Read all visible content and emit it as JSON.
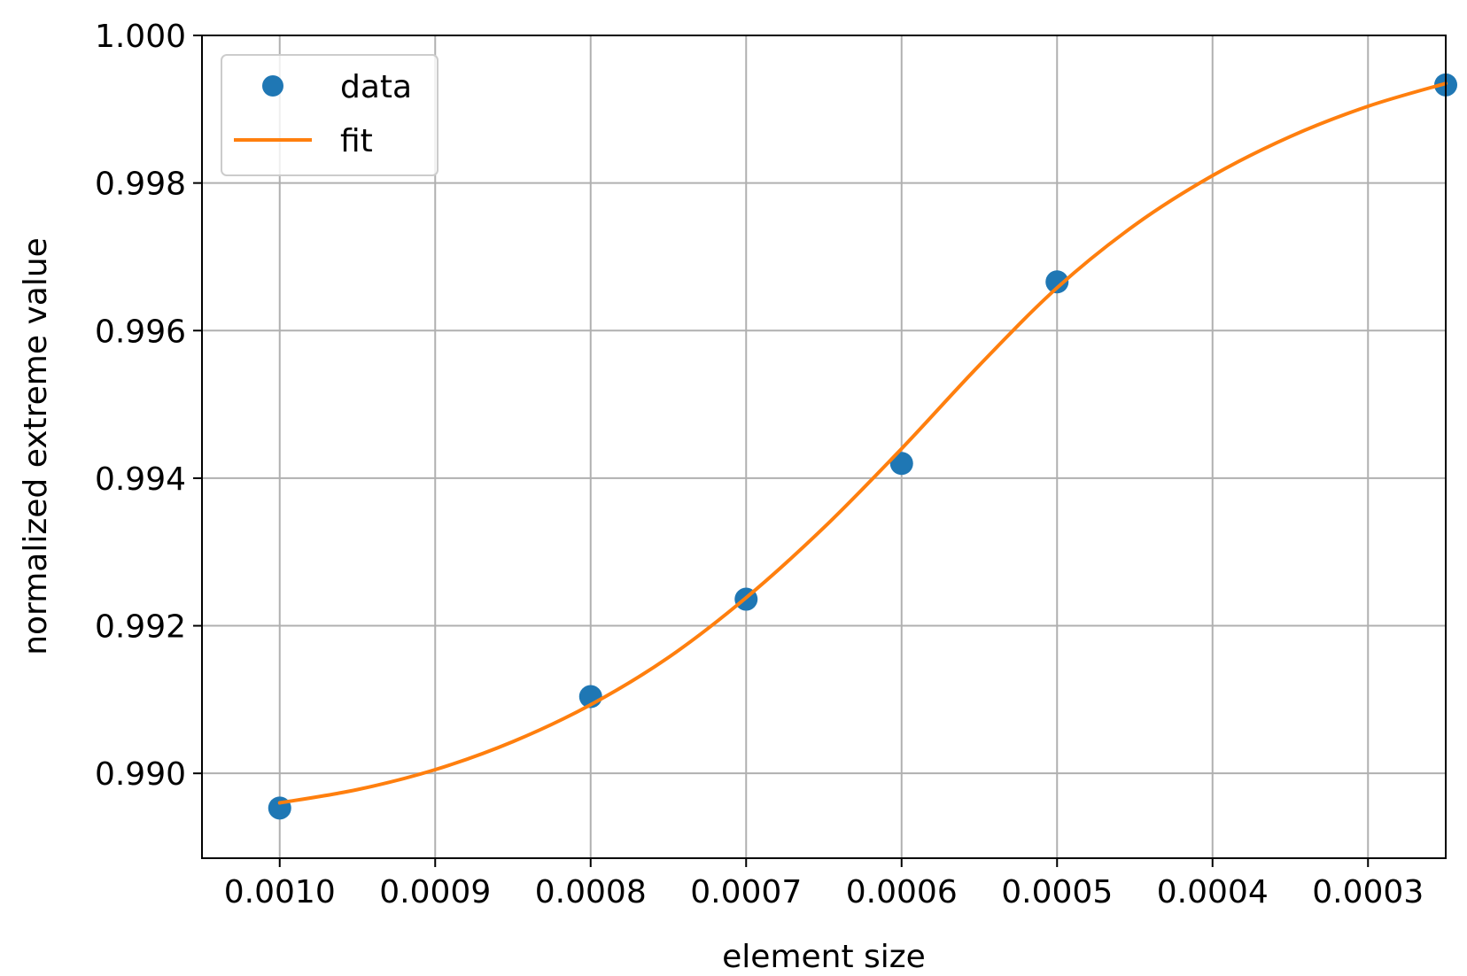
{
  "chart_data": {
    "type": "scatter",
    "xlabel": "element size",
    "ylabel": "normalized extreme value",
    "x_inverted": true,
    "xlim": [
      0.00105,
      0.00025
    ],
    "ylim": [
      0.98885,
      1.0
    ],
    "x_ticks": [
      0.001,
      0.0009,
      0.0008,
      0.0007,
      0.0006,
      0.0005,
      0.0004,
      0.0003
    ],
    "x_tick_labels": [
      "0.0010",
      "0.0009",
      "0.0008",
      "0.0007",
      "0.0006",
      "0.0005",
      "0.0004",
      "0.0003"
    ],
    "y_ticks": [
      0.99,
      0.992,
      0.994,
      0.996,
      0.998,
      1.0
    ],
    "y_tick_labels": [
      "0.990",
      "0.992",
      "0.994",
      "0.996",
      "0.998",
      "1.000"
    ],
    "grid": true,
    "legend_position": "top-left",
    "series": [
      {
        "name": "data",
        "kind": "markers",
        "color": "#1f77b4",
        "x": [
          0.001,
          0.0008,
          0.0007,
          0.0006,
          0.0005,
          0.00025
        ],
        "y": [
          0.98953,
          0.99104,
          0.99236,
          0.9942,
          0.99666,
          0.99933
        ]
      },
      {
        "name": "fit",
        "kind": "line",
        "color": "#ff7f0e",
        "x": [
          0.001,
          0.00095,
          0.0009,
          0.00085,
          0.0008,
          0.00075,
          0.0007,
          0.00065,
          0.0006,
          0.00055,
          0.0005,
          0.00045,
          0.0004,
          0.00035,
          0.0003,
          0.00025
        ],
        "y": [
          0.9896,
          0.98978,
          0.99005,
          0.99043,
          0.99093,
          0.99157,
          0.99238,
          0.99333,
          0.9944,
          0.99553,
          0.99658,
          0.99743,
          0.9981,
          0.99863,
          0.99904,
          0.99935
        ]
      }
    ]
  }
}
